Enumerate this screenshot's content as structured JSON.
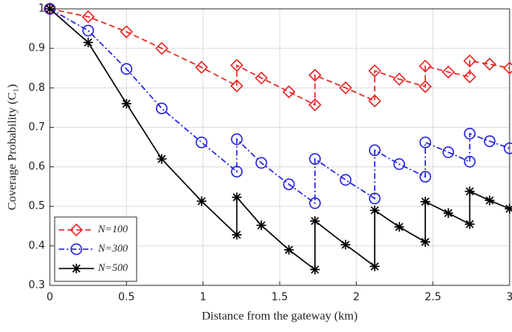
{
  "chart_data": {
    "type": "line",
    "xlabel": "Distance from the gateway (km)",
    "ylabel": "Coverage Probability (C₁)",
    "x": [
      0,
      0.25,
      0.5,
      0.73,
      0.99,
      1.22,
      1.22,
      1.38,
      1.56,
      1.73,
      1.73,
      1.93,
      2.12,
      2.12,
      2.28,
      2.45,
      2.45,
      2.6,
      2.74,
      2.74,
      2.87,
      3
    ],
    "series": [
      {
        "name": "N=100",
        "color": "#e8211f",
        "dash": "7,4",
        "marker": "diamond",
        "values": [
          1,
          0.98,
          0.942,
          0.9,
          0.852,
          0.805,
          0.857,
          0.825,
          0.79,
          0.757,
          0.832,
          0.8,
          0.767,
          0.843,
          0.822,
          0.803,
          0.855,
          0.84,
          0.828,
          0.868,
          0.86,
          0.85
        ]
      },
      {
        "name": "N=300",
        "color": "#1f1fe0",
        "dash": "7,3,2,3",
        "marker": "circle",
        "values": [
          1,
          0.945,
          0.848,
          0.748,
          0.662,
          0.588,
          0.67,
          0.61,
          0.556,
          0.508,
          0.62,
          0.567,
          0.52,
          0.642,
          0.607,
          0.575,
          0.662,
          0.637,
          0.613,
          0.684,
          0.665,
          0.647
        ]
      },
      {
        "name": "N=500",
        "color": "#000000",
        "dash": "none",
        "marker": "asterisk",
        "values": [
          1,
          0.915,
          0.76,
          0.62,
          0.513,
          0.428,
          0.523,
          0.452,
          0.39,
          0.34,
          0.463,
          0.403,
          0.348,
          0.49,
          0.448,
          0.41,
          0.512,
          0.483,
          0.455,
          0.538,
          0.515,
          0.494
        ]
      }
    ],
    "xlim": [
      0,
      3
    ],
    "xticks": [
      0,
      0.5,
      1,
      1.5,
      2,
      2.5,
      3
    ],
    "ylim": [
      0.3,
      1
    ],
    "yticks": [
      0.3,
      0.4,
      0.5,
      0.6,
      0.7,
      0.8,
      0.9,
      1
    ],
    "grid": true,
    "legend": "lower-left"
  }
}
